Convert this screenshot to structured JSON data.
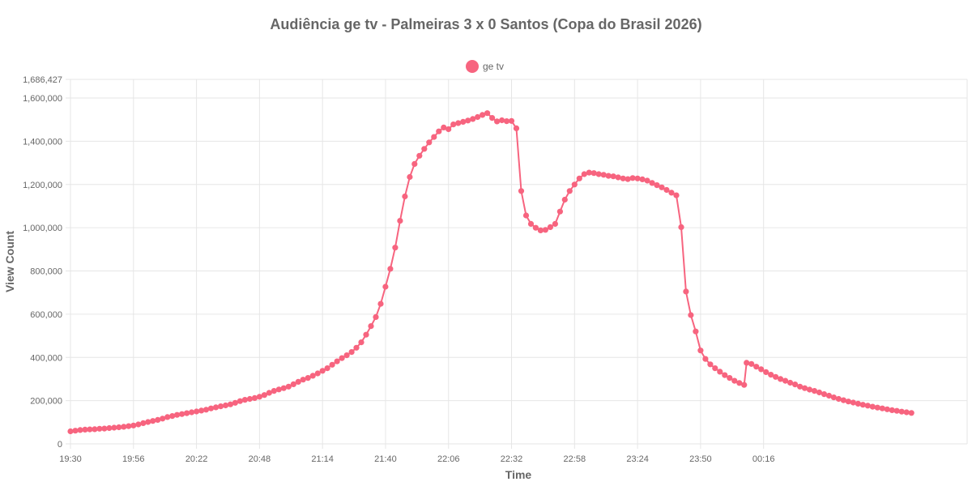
{
  "chart_data": {
    "type": "line",
    "title": "Audiência ge tv - Palmeiras 3 x 0 Santos (Copa do Brasil 2026)",
    "xlabel": "Time",
    "ylabel": "View Count",
    "x_tick_labels": [
      "19:30",
      "19:56",
      "20:22",
      "20:48",
      "21:14",
      "21:40",
      "22:06",
      "22:32",
      "22:58",
      "23:24",
      "23:50",
      "00:16"
    ],
    "y_tick_labels": [
      "0",
      "200,000",
      "400,000",
      "600,000",
      "800,000",
      "1,000,000",
      "1,200,000",
      "1,400,000",
      "1,600,000",
      "1,686,427"
    ],
    "x_range_minutes": [
      0,
      370
    ],
    "ylim": [
      0,
      1686427
    ],
    "grid": true,
    "legend_position": "top-center",
    "series": [
      {
        "name": "ge tv",
        "color": "#f7647f",
        "points": [
          [
            0,
            58000
          ],
          [
            2,
            61000
          ],
          [
            4,
            64000
          ],
          [
            6,
            66000
          ],
          [
            8,
            67000
          ],
          [
            10,
            68000
          ],
          [
            12,
            70000
          ],
          [
            14,
            71000
          ],
          [
            16,
            73000
          ],
          [
            18,
            75000
          ],
          [
            20,
            77000
          ],
          [
            22,
            79000
          ],
          [
            24,
            82000
          ],
          [
            26,
            85000
          ],
          [
            28,
            90000
          ],
          [
            30,
            96000
          ],
          [
            32,
            101000
          ],
          [
            34,
            106000
          ],
          [
            36,
            111000
          ],
          [
            38,
            117000
          ],
          [
            40,
            124000
          ],
          [
            42,
            129000
          ],
          [
            44,
            134000
          ],
          [
            46,
            138000
          ],
          [
            48,
            142000
          ],
          [
            50,
            146000
          ],
          [
            52,
            150000
          ],
          [
            54,
            154000
          ],
          [
            56,
            158000
          ],
          [
            58,
            164000
          ],
          [
            60,
            169000
          ],
          [
            62,
            174000
          ],
          [
            64,
            178000
          ],
          [
            66,
            183000
          ],
          [
            68,
            190000
          ],
          [
            70,
            198000
          ],
          [
            72,
            204000
          ],
          [
            74,
            208000
          ],
          [
            76,
            212000
          ],
          [
            78,
            218000
          ],
          [
            80,
            226000
          ],
          [
            82,
            236000
          ],
          [
            84,
            245000
          ],
          [
            86,
            252000
          ],
          [
            88,
            258000
          ],
          [
            90,
            265000
          ],
          [
            92,
            276000
          ],
          [
            94,
            287000
          ],
          [
            96,
            297000
          ],
          [
            98,
            305000
          ],
          [
            100,
            315000
          ],
          [
            102,
            326000
          ],
          [
            104,
            338000
          ],
          [
            106,
            350000
          ],
          [
            108,
            366000
          ],
          [
            110,
            382000
          ],
          [
            112,
            397000
          ],
          [
            114,
            410000
          ],
          [
            116,
            425000
          ],
          [
            118,
            445000
          ],
          [
            120,
            470000
          ],
          [
            122,
            505000
          ],
          [
            124,
            545000
          ],
          [
            126,
            587000
          ],
          [
            128,
            648000
          ],
          [
            130,
            727000
          ],
          [
            132,
            810000
          ],
          [
            134,
            908000
          ],
          [
            136,
            1032000
          ],
          [
            138,
            1145000
          ],
          [
            140,
            1235000
          ],
          [
            142,
            1295000
          ],
          [
            144,
            1333000
          ],
          [
            146,
            1365000
          ],
          [
            148,
            1395000
          ],
          [
            150,
            1420000
          ],
          [
            152,
            1446000
          ],
          [
            154,
            1464000
          ],
          [
            156,
            1456000
          ],
          [
            158,
            1478000
          ],
          [
            160,
            1484000
          ],
          [
            162,
            1490000
          ],
          [
            164,
            1496000
          ],
          [
            166,
            1503000
          ],
          [
            168,
            1512000
          ],
          [
            170,
            1522000
          ],
          [
            172,
            1530000
          ],
          [
            174,
            1508000
          ],
          [
            176,
            1492000
          ],
          [
            178,
            1497000
          ],
          [
            180,
            1493000
          ],
          [
            182,
            1494000
          ],
          [
            184,
            1460000
          ],
          [
            186,
            1170000
          ],
          [
            188,
            1057000
          ],
          [
            190,
            1018000
          ],
          [
            192,
            1000000
          ],
          [
            194,
            988000
          ],
          [
            196,
            990000
          ],
          [
            198,
            1003000
          ],
          [
            200,
            1018000
          ],
          [
            202,
            1075000
          ],
          [
            204,
            1130000
          ],
          [
            206,
            1170000
          ],
          [
            208,
            1200000
          ],
          [
            210,
            1228000
          ],
          [
            212,
            1248000
          ],
          [
            214,
            1255000
          ],
          [
            216,
            1253000
          ],
          [
            218,
            1248000
          ],
          [
            220,
            1245000
          ],
          [
            222,
            1240000
          ],
          [
            224,
            1238000
          ],
          [
            226,
            1233000
          ],
          [
            228,
            1228000
          ],
          [
            230,
            1225000
          ],
          [
            232,
            1230000
          ],
          [
            234,
            1228000
          ],
          [
            236,
            1224000
          ],
          [
            238,
            1218000
          ],
          [
            240,
            1207000
          ],
          [
            242,
            1197000
          ],
          [
            244,
            1187000
          ],
          [
            246,
            1175000
          ],
          [
            248,
            1162000
          ],
          [
            250,
            1150000
          ],
          [
            252,
            1003000
          ],
          [
            254,
            705000
          ],
          [
            256,
            596000
          ],
          [
            258,
            520000
          ],
          [
            260,
            432000
          ],
          [
            262,
            393000
          ],
          [
            264,
            368000
          ],
          [
            266,
            350000
          ],
          [
            268,
            334000
          ],
          [
            270,
            318000
          ],
          [
            272,
            305000
          ],
          [
            274,
            292000
          ],
          [
            276,
            282000
          ],
          [
            278,
            273000
          ],
          [
            279,
            375000
          ],
          [
            281,
            370000
          ],
          [
            283,
            357000
          ],
          [
            285,
            345000
          ],
          [
            287,
            332000
          ],
          [
            289,
            320000
          ],
          [
            291,
            310000
          ],
          [
            293,
            300000
          ],
          [
            295,
            292000
          ],
          [
            297,
            283000
          ],
          [
            299,
            275000
          ],
          [
            301,
            265000
          ],
          [
            303,
            258000
          ],
          [
            305,
            251000
          ],
          [
            307,
            245000
          ],
          [
            309,
            238000
          ],
          [
            311,
            230000
          ],
          [
            313,
            223000
          ],
          [
            315,
            215000
          ],
          [
            317,
            208000
          ],
          [
            319,
            202000
          ],
          [
            321,
            196000
          ],
          [
            323,
            191000
          ],
          [
            325,
            186000
          ],
          [
            327,
            181000
          ],
          [
            329,
            177000
          ],
          [
            331,
            172000
          ],
          [
            333,
            168000
          ],
          [
            335,
            164000
          ],
          [
            337,
            160000
          ],
          [
            339,
            156000
          ],
          [
            341,
            153000
          ],
          [
            343,
            149000
          ],
          [
            345,
            146000
          ],
          [
            347,
            143000
          ]
        ]
      }
    ]
  }
}
